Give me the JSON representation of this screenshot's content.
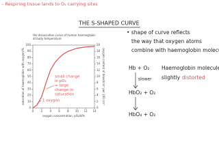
{
  "header": {
    "top_note": "– Respiring tissue lands to O₂ carrying sites",
    "heading": "THE S-SHAPED CURVE"
  },
  "chart_data": {
    "type": "line",
    "title": [
      "the dissociation curve of human haemoglobin",
      "at body temperature"
    ],
    "x_label": "oxygen concentration, pO₂/kPa",
    "y_label": "saturation of haemoglobin with oxygen/%",
    "y2_label": "oxygen content of blood/cm³ per 100 cm³",
    "x": [
      0,
      1,
      2,
      3,
      4,
      5,
      6,
      7,
      8,
      10,
      12,
      14
    ],
    "values": [
      0,
      5,
      18,
      40,
      60,
      72,
      80,
      86,
      90,
      95,
      97,
      98
    ],
    "color": "#d9534f",
    "xlim": [
      0,
      14
    ],
    "xticks": [
      0,
      2,
      4,
      6,
      8,
      10,
      12,
      14
    ],
    "ylim": [
      0,
      100
    ],
    "yticks": [
      0,
      10,
      20,
      30,
      40,
      50,
      60,
      70,
      80,
      90,
      100
    ],
    "y2lim": [
      0,
      20
    ],
    "y2ticks": [
      0,
      2,
      4,
      6,
      8,
      10,
      12,
      14,
      16,
      18,
      20
    ],
    "annotations": [
      [
        "small change",
        "in pO₂",
        "= large",
        "change in",
        "saturation"
      ],
      [
        "1 oxygen"
      ]
    ]
  },
  "notes": {
    "bullet": [
      "• shape of curve reflects",
      "the way that oxygen atoms",
      "combine with haemoglobin molecules"
    ],
    "eq1": "Hb + O₂",
    "slower": "slower",
    "eq2": "HbO₂ + O₂",
    "eq3": "HbO₄ + O₂",
    "side": [
      "Haemoglobin molecule gets",
      "slightly"
    ],
    "distorted": "distorted"
  }
}
